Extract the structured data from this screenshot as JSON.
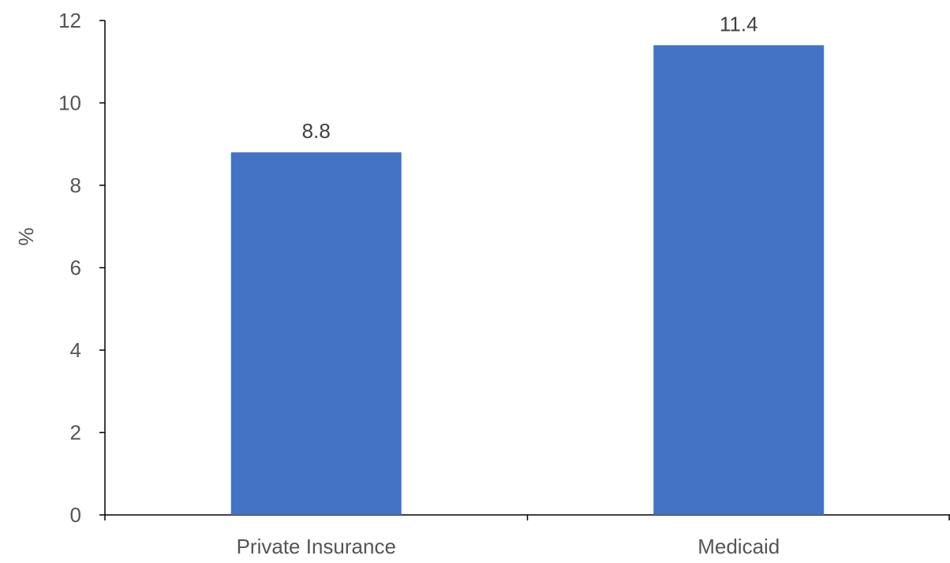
{
  "chart_data": {
    "type": "bar",
    "title": "",
    "xlabel": "",
    "ylabel": "%",
    "categories": [
      "Private Insurance",
      "Medicaid"
    ],
    "values": [
      8.8,
      11.4
    ],
    "data_labels": [
      "8.8",
      "11.4"
    ],
    "ylim": [
      0,
      12
    ],
    "yticks": [
      0,
      2,
      4,
      6,
      8,
      10,
      12
    ],
    "grid": false,
    "legend": "none",
    "bar_color": "#4472C4"
  }
}
